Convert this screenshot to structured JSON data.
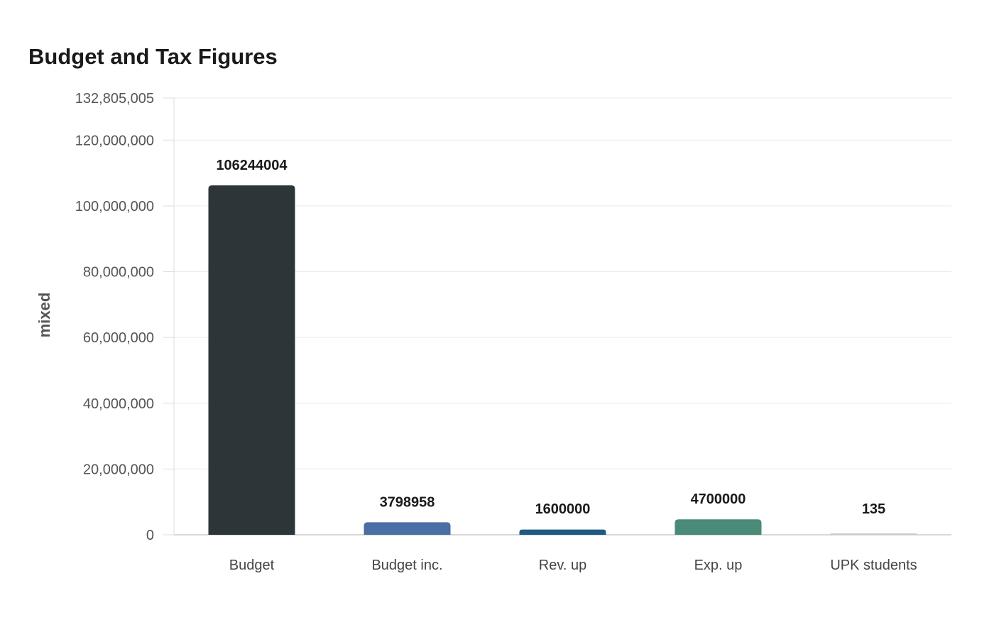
{
  "chart_data": {
    "type": "bar",
    "title": "Budget and Tax Figures",
    "xlabel": "",
    "ylabel": "mixed",
    "categories": [
      "Budget",
      "Budget inc.",
      "Rev. up",
      "Exp. up",
      "UPK students"
    ],
    "values": [
      106244004,
      3798958,
      1600000,
      4700000,
      135
    ],
    "value_labels": [
      "106244004",
      "3798958",
      "1600000",
      "4700000",
      "135"
    ],
    "colors": [
      "#2e3538",
      "#4a6fa5",
      "#1e5a85",
      "#4a8a78",
      "#cccccc"
    ],
    "ylim": [
      0,
      132805005
    ],
    "yticks": [
      0,
      20000000,
      40000000,
      60000000,
      80000000,
      100000000,
      120000000,
      132805005
    ],
    "ytick_labels": [
      "0",
      "20,000,000",
      "40,000,000",
      "60,000,000",
      "80,000,000",
      "100,000,000",
      "120,000,000",
      "132,805,005"
    ],
    "grid": true,
    "legend": "none"
  }
}
